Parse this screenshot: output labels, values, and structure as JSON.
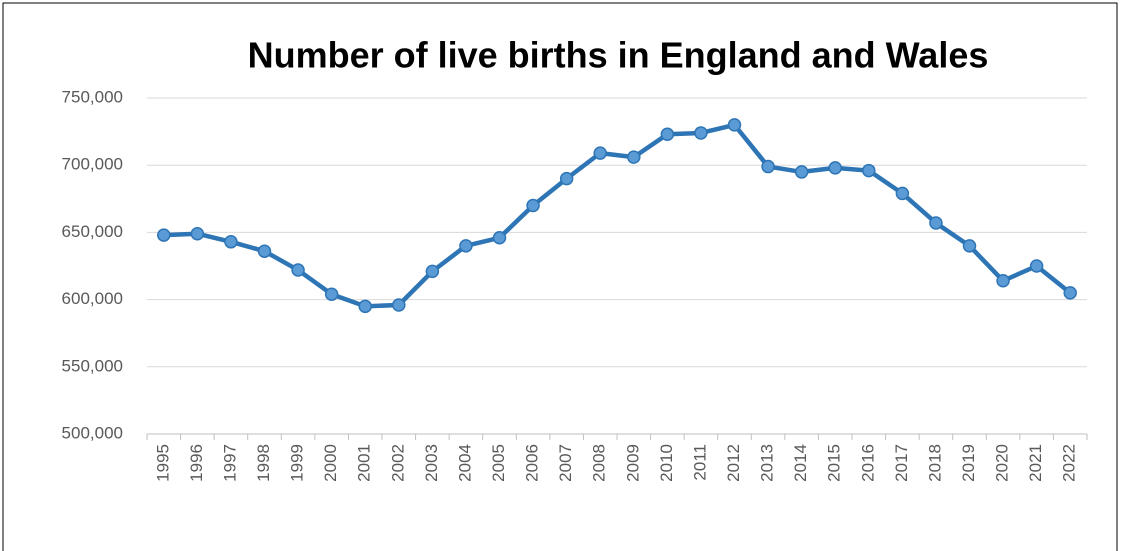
{
  "chart_data": {
    "type": "line",
    "title": "Number of live births in England and Wales",
    "categories": [
      "1995",
      "1996",
      "1997",
      "1998",
      "1999",
      "2000",
      "2001",
      "2002",
      "2003",
      "2004",
      "2005",
      "2006",
      "2007",
      "2008",
      "2009",
      "2010",
      "2011",
      "2012",
      "2013",
      "2014",
      "2015",
      "2016",
      "2017",
      "2018",
      "2019",
      "2020",
      "2021",
      "2022"
    ],
    "series": [
      {
        "name": "Live births",
        "color": "#2e75b6",
        "values": [
          648000,
          649000,
          643000,
          636000,
          622000,
          604000,
          595000,
          596000,
          621000,
          640000,
          646000,
          670000,
          690000,
          709000,
          706000,
          723000,
          724000,
          730000,
          699000,
          695000,
          698000,
          696000,
          679000,
          657000,
          640000,
          614000,
          625000,
          605000
        ]
      }
    ],
    "ylim": [
      500000,
      750000
    ],
    "yticks": [
      {
        "value": 500000,
        "label": "500,000"
      },
      {
        "value": 550000,
        "label": "550,000"
      },
      {
        "value": 600000,
        "label": "600,000"
      },
      {
        "value": 650000,
        "label": "650,000"
      },
      {
        "value": 700000,
        "label": "700,000"
      },
      {
        "value": 750000,
        "label": "750,000"
      }
    ],
    "grid": true
  }
}
